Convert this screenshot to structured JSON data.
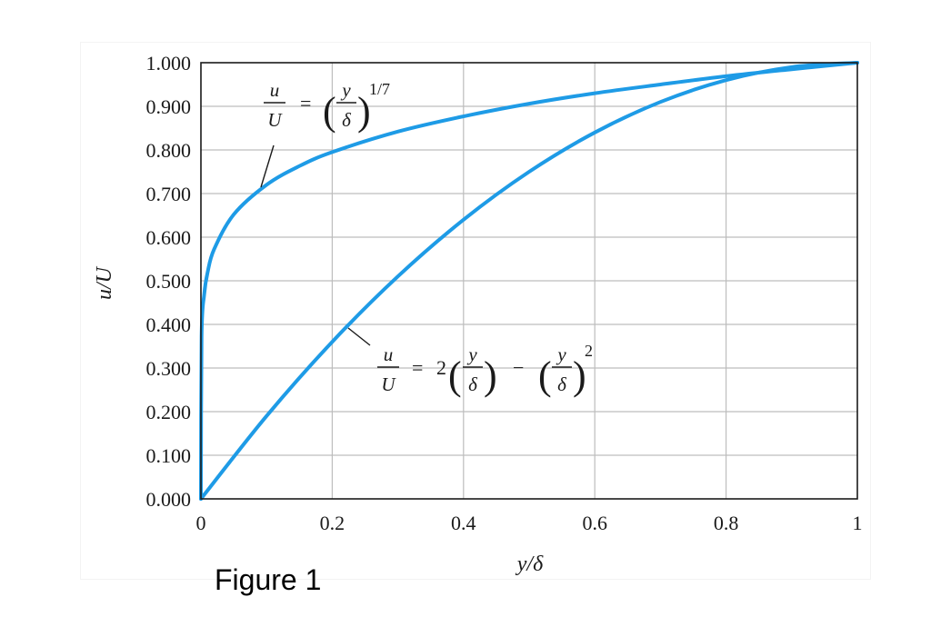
{
  "caption": "Figure 1",
  "colors": {
    "curve": "#1E9BE6",
    "grid": "#bdbdbd",
    "axis": "#1a1a1a"
  },
  "chart_data": {
    "type": "line",
    "title": "",
    "xlabel": "y/δ",
    "ylabel": "u/U",
    "xlim": [
      0,
      1
    ],
    "ylim": [
      0,
      1
    ],
    "grid": true,
    "x_ticks": [
      0,
      0.2,
      0.4,
      0.6,
      0.8,
      1
    ],
    "x_tick_labels": [
      "0",
      "0.2",
      "0.4",
      "0.6",
      "0.8",
      "1"
    ],
    "y_ticks": [
      0,
      0.1,
      0.2,
      0.3,
      0.4,
      0.5,
      0.6,
      0.7,
      0.8,
      0.9,
      1.0
    ],
    "y_tick_labels": [
      "0.000",
      "0.100",
      "0.200",
      "0.300",
      "0.400",
      "0.500",
      "0.600",
      "0.700",
      "0.800",
      "0.900",
      "1.000"
    ],
    "series": [
      {
        "x": [
          0,
          0.001,
          0.005,
          0.01,
          0.02,
          0.05,
          0.1,
          0.15,
          0.2,
          0.3,
          0.4,
          0.5,
          0.6,
          0.7,
          0.8,
          0.9,
          1.0
        ],
        "y": [
          0,
          0.373,
          0.469,
          0.518,
          0.572,
          0.652,
          0.72,
          0.763,
          0.795,
          0.842,
          0.877,
          0.906,
          0.93,
          0.95,
          0.969,
          0.985,
          1.0
        ],
        "annotation": {
          "lhs_num": "u",
          "lhs_den": "U",
          "eq": "=",
          "frac_num": "y",
          "frac_den": "δ",
          "exponent": "1/7"
        }
      },
      {
        "x": [
          0,
          0.1,
          0.2,
          0.3,
          0.4,
          0.5,
          0.6,
          0.7,
          0.8,
          0.9,
          1.0
        ],
        "y": [
          0,
          0.19,
          0.36,
          0.51,
          0.64,
          0.75,
          0.84,
          0.91,
          0.96,
          0.99,
          1.0
        ],
        "annotation": {
          "lhs_num": "u",
          "lhs_den": "U",
          "eq": "=",
          "coef": "2",
          "frac_num": "y",
          "frac_den": "δ",
          "minus": "−",
          "exponent": "2"
        }
      }
    ]
  }
}
